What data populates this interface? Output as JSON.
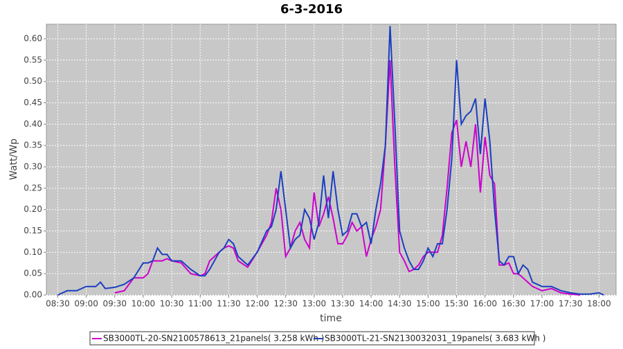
{
  "chart_data": {
    "type": "line",
    "title": "6-3-2016",
    "x_label": "time",
    "y_label": "Watt/Wp",
    "x": [
      "08:30",
      "08:40",
      "08:50",
      "09:00",
      "09:10",
      "09:15",
      "09:20",
      "09:30",
      "09:40",
      "09:50",
      "10:00",
      "10:05",
      "10:10",
      "10:15",
      "10:20",
      "10:25",
      "10:30",
      "10:40",
      "10:50",
      "11:00",
      "11:05",
      "11:10",
      "11:20",
      "11:25",
      "11:30",
      "11:35",
      "11:40",
      "11:50",
      "12:00",
      "12:10",
      "12:15",
      "12:20",
      "12:25",
      "12:30",
      "12:35",
      "12:40",
      "12:45",
      "12:50",
      "12:55",
      "13:00",
      "13:05",
      "13:10",
      "13:15",
      "13:20",
      "13:25",
      "13:30",
      "13:35",
      "13:40",
      "13:45",
      "13:50",
      "13:55",
      "14:00",
      "14:05",
      "14:10",
      "14:15",
      "14:20",
      "14:25",
      "14:30",
      "14:35",
      "14:40",
      "14:45",
      "14:50",
      "14:55",
      "15:00",
      "15:05",
      "15:10",
      "15:15",
      "15:20",
      "15:25",
      "15:30",
      "15:35",
      "15:40",
      "15:45",
      "15:50",
      "15:55",
      "16:00",
      "16:05",
      "16:10",
      "16:15",
      "16:20",
      "16:25",
      "16:30",
      "16:35",
      "16:40",
      "16:45",
      "16:50",
      "17:00",
      "17:10",
      "17:20",
      "17:30",
      "17:40",
      "17:50",
      "18:00",
      "18:05"
    ],
    "series": [
      {
        "name": "SB3000TL-20-SN2100578613_21panels( 3.258 kWh )",
        "color": "#cc00cc",
        "values": [
          null,
          null,
          null,
          null,
          null,
          null,
          null,
          0.005,
          0.01,
          0.04,
          0.04,
          0.05,
          0.08,
          0.08,
          0.08,
          0.085,
          0.08,
          0.075,
          0.05,
          0.045,
          0.05,
          0.08,
          0.1,
          0.11,
          0.115,
          0.11,
          0.08,
          0.065,
          0.1,
          0.14,
          0.17,
          0.25,
          0.2,
          0.09,
          0.11,
          0.15,
          0.17,
          0.13,
          0.11,
          0.24,
          0.16,
          0.19,
          0.23,
          0.18,
          0.12,
          0.12,
          0.14,
          0.17,
          0.15,
          0.16,
          0.09,
          0.13,
          0.16,
          0.2,
          0.35,
          0.55,
          0.3,
          0.1,
          0.08,
          0.055,
          0.06,
          0.07,
          0.09,
          0.1,
          0.1,
          0.1,
          0.14,
          0.25,
          0.38,
          0.41,
          0.3,
          0.36,
          0.3,
          0.4,
          0.24,
          0.37,
          0.28,
          0.26,
          0.07,
          0.07,
          0.075,
          0.05,
          0.05,
          0.04,
          0.03,
          0.02,
          0.01,
          0.015,
          0.005,
          0.002,
          0,
          null,
          null,
          null
        ]
      },
      {
        "name": "SB3000TL-21-SN2130032031_19panels( 3.683 kWh )",
        "color": "#1a3fbf",
        "values": [
          0,
          0.01,
          0.01,
          0.02,
          0.02,
          0.03,
          0.015,
          0.018,
          0.025,
          0.04,
          0.075,
          0.075,
          0.08,
          0.11,
          0.095,
          0.095,
          0.08,
          0.08,
          0.06,
          0.045,
          0.045,
          0.06,
          0.1,
          0.11,
          0.13,
          0.12,
          0.09,
          0.07,
          0.1,
          0.15,
          0.16,
          0.2,
          0.29,
          0.2,
          0.11,
          0.13,
          0.14,
          0.2,
          0.18,
          0.13,
          0.17,
          0.28,
          0.18,
          0.29,
          0.2,
          0.14,
          0.15,
          0.19,
          0.19,
          0.16,
          0.17,
          0.12,
          0.2,
          0.26,
          0.35,
          0.63,
          0.4,
          0.15,
          0.11,
          0.08,
          0.06,
          0.06,
          0.08,
          0.11,
          0.09,
          0.12,
          0.12,
          0.2,
          0.32,
          0.55,
          0.4,
          0.42,
          0.43,
          0.46,
          0.33,
          0.46,
          0.36,
          0.2,
          0.08,
          0.07,
          0.09,
          0.09,
          0.05,
          0.07,
          0.06,
          0.03,
          0.02,
          0.02,
          0.01,
          0.005,
          0.002,
          0.002,
          0.005,
          0
        ]
      }
    ],
    "xlim": [
      "08:18",
      "18:18"
    ],
    "xticks": [
      "08:30",
      "09:00",
      "09:30",
      "10:00",
      "10:30",
      "11:00",
      "11:30",
      "12:00",
      "12:30",
      "13:00",
      "13:30",
      "14:00",
      "14:30",
      "15:00",
      "15:30",
      "16:00",
      "16:30",
      "17:00",
      "17:30",
      "18:00"
    ],
    "ylim": [
      0,
      0.634
    ],
    "yticks": [
      {
        "value": 0,
        "label": "0.00"
      },
      {
        "value": 0.05,
        "label": "0.05"
      },
      {
        "value": 0.1,
        "label": "0.10"
      },
      {
        "value": 0.15,
        "label": "0.15"
      },
      {
        "value": 0.2,
        "label": "0.20"
      },
      {
        "value": 0.25,
        "label": "0.25"
      },
      {
        "value": 0.3,
        "label": "0.30"
      },
      {
        "value": 0.35,
        "label": "0.35"
      },
      {
        "value": 0.4,
        "label": "0.40"
      },
      {
        "value": 0.45,
        "label": "0.45"
      },
      {
        "value": 0.5,
        "label": "0.50"
      },
      {
        "value": 0.55,
        "label": "0.55"
      },
      {
        "value": 0.6,
        "label": "0.60"
      }
    ],
    "grid": true,
    "legend": "bottom"
  }
}
